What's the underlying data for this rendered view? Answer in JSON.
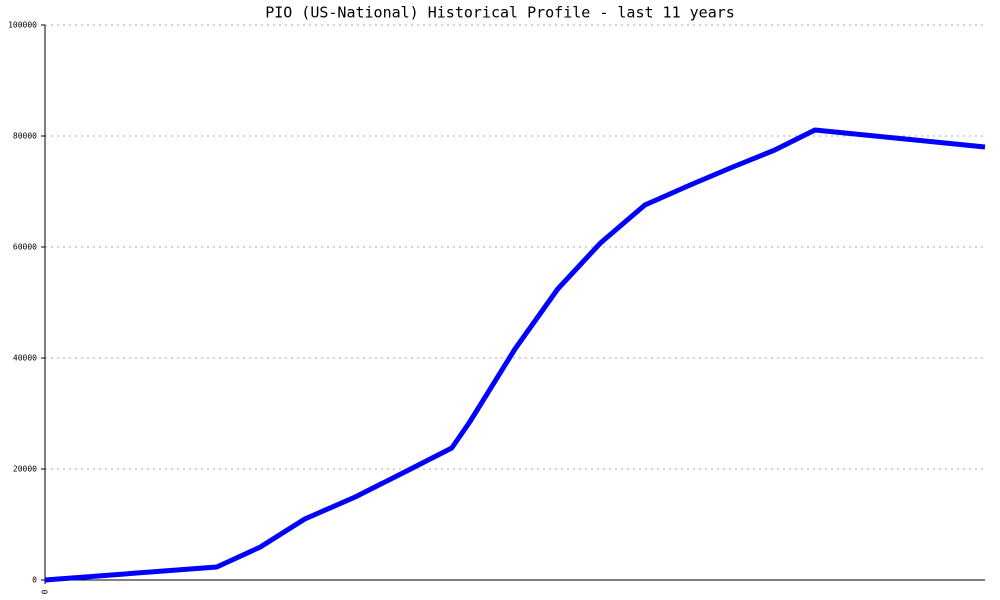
{
  "chart_data": {
    "type": "line",
    "title": "PIO (US-National) Historical Profile - last 11 years",
    "x": [
      0,
      2.01,
      2.52,
      3.04,
      3.63,
      4.21,
      4.76,
      4.97,
      5.5,
      6.0,
      6.5,
      7.02,
      7.55,
      8.02,
      8.54,
      9.01,
      11
    ],
    "series": [
      {
        "color": "#0000ff",
        "values": [
          0,
          2342,
          5946,
          10991,
          14955,
          19459,
          23784,
          28468,
          41622,
          52432,
          60721,
          67568,
          71171,
          74234,
          77477,
          81081,
          78018
        ]
      }
    ],
    "xlim": [
      0,
      11
    ],
    "xticks": [
      0
    ],
    "ylim": [
      0,
      100000
    ],
    "yticks": [
      0,
      20000,
      40000,
      60000,
      80000,
      100000
    ],
    "grid": true
  }
}
